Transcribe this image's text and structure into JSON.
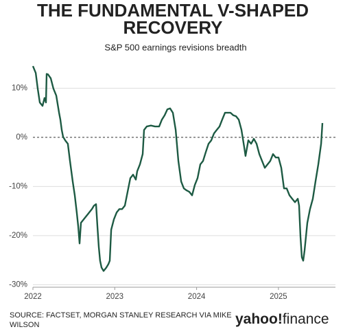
{
  "chart_data": {
    "type": "line",
    "title": [
      "THE FUNDAMENTAL V-SHAPED",
      "RECOVERY"
    ],
    "subtitle": "S&P 500 earnings revisions breadth",
    "source": [
      "SOURCE: FACTSET, MORGAN STANLEY RESEARCH VIA MIKE",
      "WILSON"
    ],
    "logo": [
      "yahoo!",
      "finance"
    ],
    "x": [
      2022.0,
      2022.034,
      2022.059,
      2022.084,
      2022.117,
      2022.142,
      2022.159,
      2022.168,
      2022.184,
      2022.218,
      2022.251,
      2022.285,
      2022.319,
      2022.335,
      2022.352,
      2022.369,
      2022.394,
      2022.427,
      2022.453,
      2022.486,
      2022.511,
      2022.536,
      2022.553,
      2022.57,
      2022.587,
      2022.62,
      2022.654,
      2022.687,
      2022.721,
      2022.746,
      2022.771,
      2022.788,
      2022.805,
      2022.821,
      2022.838,
      2022.863,
      2022.897,
      2022.922,
      2022.939,
      2022.956,
      2022.989,
      2023.023,
      2023.056,
      2023.09,
      2023.123,
      2023.157,
      2023.19,
      2023.224,
      2023.257,
      2023.274,
      2023.308,
      2023.341,
      2023.358,
      2023.391,
      2023.442,
      2023.492,
      2023.542,
      2023.576,
      2023.609,
      2023.643,
      2023.676,
      2023.71,
      2023.744,
      2023.777,
      2023.811,
      2023.844,
      2023.878,
      2023.911,
      2023.945,
      2023.978,
      2024.012,
      2024.045,
      2024.079,
      2024.112,
      2024.146,
      2024.179,
      2024.213,
      2024.246,
      2024.28,
      2024.313,
      2024.347,
      2024.381,
      2024.414,
      2024.448,
      2024.481,
      2024.515,
      2024.548,
      2024.582,
      2024.598,
      2024.632,
      2024.666,
      2024.699,
      2024.733,
      2024.766,
      2024.8,
      2024.833,
      2024.867,
      2024.9,
      2024.934,
      2024.967,
      2025.001,
      2025.034,
      2025.068,
      2025.101,
      2025.135,
      2025.168,
      2025.202,
      2025.236,
      2025.252,
      2025.269,
      2025.286,
      2025.303,
      2025.319,
      2025.336,
      2025.353,
      2025.386,
      2025.42,
      2025.453,
      2025.487,
      2025.521,
      2025.537
    ],
    "series": [
      {
        "color": "#1d5a43",
        "values": [
          14.5,
          13.1,
          9.9,
          7.1,
          6.4,
          8.0,
          7.1,
          12.9,
          12.8,
          12.0,
          9.9,
          8.5,
          5.0,
          3.6,
          1.5,
          0.1,
          -0.6,
          -1.3,
          -4.8,
          -9.0,
          -11.8,
          -15.3,
          -18.1,
          -21.6,
          -17.4,
          -16.7,
          -16.0,
          -15.3,
          -14.6,
          -13.9,
          -13.6,
          -18.1,
          -22.3,
          -25.1,
          -26.5,
          -27.2,
          -26.5,
          -25.8,
          -25.1,
          -18.8,
          -16.7,
          -15.3,
          -14.6,
          -14.6,
          -13.9,
          -11.1,
          -8.3,
          -7.6,
          -8.6,
          -6.9,
          -5.5,
          -3.4,
          1.5,
          2.2,
          2.4,
          2.2,
          2.2,
          3.6,
          4.5,
          5.7,
          5.9,
          5.0,
          1.5,
          -4.8,
          -9.0,
          -10.4,
          -10.8,
          -11.1,
          -11.8,
          -9.7,
          -8.3,
          -5.5,
          -4.8,
          -3.0,
          -1.3,
          -0.6,
          0.8,
          1.5,
          2.2,
          3.6,
          5.0,
          5.0,
          5.0,
          4.5,
          4.3,
          3.6,
          1.5,
          -2.0,
          -3.8,
          -0.6,
          -1.3,
          -0.3,
          -1.3,
          -3.4,
          -4.8,
          -6.2,
          -5.5,
          -4.8,
          -3.4,
          -4.1,
          -4.1,
          -6.2,
          -10.4,
          -10.4,
          -11.8,
          -12.5,
          -13.2,
          -12.5,
          -13.9,
          -20.2,
          -24.4,
          -25.1,
          -23.0,
          -20.2,
          -17.4,
          -14.6,
          -12.5,
          -9.0,
          -5.5,
          -1.3,
          2.9
        ]
      }
    ],
    "xlim": [
      2022,
      2025.7
    ],
    "xticks": [
      2022,
      2023,
      2024,
      2025
    ],
    "ylim": [
      -30.5,
      15.5
    ],
    "yticks": [
      {
        "value": 10,
        "label": "10%"
      },
      {
        "value": 0,
        "label": "0%"
      },
      {
        "value": -10,
        "label": "-10%"
      },
      {
        "value": -20,
        "label": "-20%"
      },
      {
        "value": -30,
        "label": "-30%"
      }
    ],
    "grid": true
  }
}
